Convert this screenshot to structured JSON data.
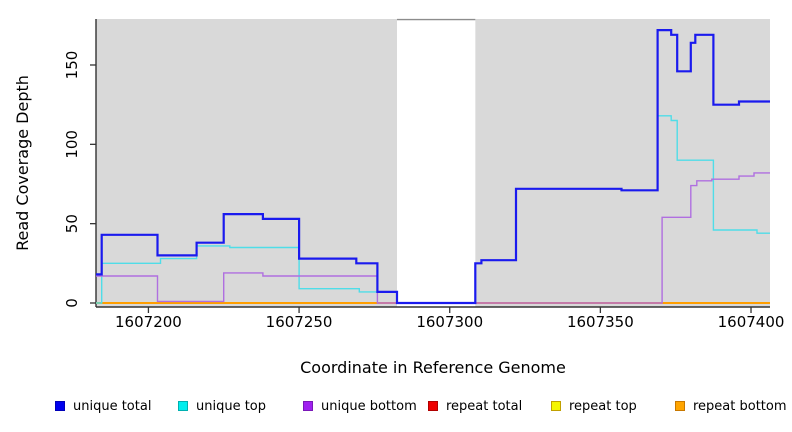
{
  "figure": {
    "background": "#ffffff",
    "panel_background": "#d9d9d9",
    "axis_color": "#333333",
    "gap_top_line_color": "#8c8c8c"
  },
  "chart_data": {
    "type": "line",
    "subtype": "step-coverage",
    "title": "",
    "xlabel": "Coordinate in Reference Genome",
    "ylabel": "Read Coverage Depth",
    "grid": false,
    "legend_position": "bottom",
    "xlim": [
      1607182.6,
      1607406.3
    ],
    "ylim": [
      -3,
      178
    ],
    "x_ticks": [
      1607200,
      1607250,
      1607300,
      1607350,
      1607400
    ],
    "x_tick_labels": [
      "1607200",
      "1607250",
      "1607300",
      "1607350",
      "1607400"
    ],
    "y_ticks": [
      0,
      50,
      100,
      150
    ],
    "y_tick_labels": [
      "0",
      "50",
      "100",
      "150"
    ],
    "gap_region": {
      "start": 1607282.5,
      "end": 1607308.5,
      "fill": "#ffffff",
      "note": "white vertical band where gray panel is masked"
    },
    "series": [
      {
        "name": "repeat total",
        "color": "#e00000",
        "width": 1.6,
        "segments": [
          [
            1607182.6,
            1607406.3,
            0
          ]
        ]
      },
      {
        "name": "repeat top",
        "color": "#f5f500",
        "width": 1.6,
        "segments": [
          [
            1607182.6,
            1607406.3,
            0
          ]
        ]
      },
      {
        "name": "repeat bottom",
        "color": "#ff9e00",
        "width": 2,
        "segments": [
          [
            1607182.6,
            1607406.3,
            0
          ]
        ]
      },
      {
        "name": "unique top",
        "color": "#4fdde8",
        "width": 1.4,
        "segments": [
          [
            1607182.6,
            1607184.5,
            0
          ],
          [
            1607184.5,
            1607204,
            25
          ],
          [
            1607204,
            1607216,
            28
          ],
          [
            1607216,
            1607227,
            36
          ],
          [
            1607227,
            1607250,
            35
          ],
          [
            1607250,
            1607270,
            9
          ],
          [
            1607270,
            1607282.5,
            7
          ],
          [
            1607282.5,
            1607308.5,
            0
          ],
          [
            1607308.5,
            1607310.5,
            25
          ],
          [
            1607310.5,
            1607322,
            27
          ],
          [
            1607322,
            1607357,
            72
          ],
          [
            1607357,
            1607369,
            71
          ],
          [
            1607369,
            1607373.5,
            118
          ],
          [
            1607373.5,
            1607375.5,
            115
          ],
          [
            1607375.5,
            1607387.5,
            90
          ],
          [
            1607387.5,
            1607402,
            46
          ],
          [
            1607402,
            1607406.3,
            44
          ]
        ]
      },
      {
        "name": "unique bottom",
        "color": "#b06fe0",
        "width": 1.4,
        "segments": [
          [
            1607182.6,
            1607203,
            17
          ],
          [
            1607203,
            1607225,
            1
          ],
          [
            1607225,
            1607238,
            19
          ],
          [
            1607238,
            1607276,
            17
          ],
          [
            1607276,
            1607370.5,
            0
          ],
          [
            1607370.5,
            1607380,
            54
          ],
          [
            1607380,
            1607382,
            74
          ],
          [
            1607382,
            1607387,
            77
          ],
          [
            1607387,
            1607396,
            78
          ],
          [
            1607396,
            1607401,
            80
          ],
          [
            1607401,
            1607406.3,
            82
          ]
        ]
      },
      {
        "name": "unique total",
        "color": "#1a1aee",
        "width": 2.2,
        "segments": [
          [
            1607182.6,
            1607184.5,
            18
          ],
          [
            1607184.5,
            1607203,
            43
          ],
          [
            1607203,
            1607216,
            30
          ],
          [
            1607216,
            1607225,
            38
          ],
          [
            1607225,
            1607238,
            56
          ],
          [
            1607238,
            1607250,
            53
          ],
          [
            1607250,
            1607269,
            28
          ],
          [
            1607269,
            1607276,
            25
          ],
          [
            1607276,
            1607282.5,
            7
          ],
          [
            1607282.5,
            1607308.5,
            0
          ],
          [
            1607308.5,
            1607310.5,
            25
          ],
          [
            1607310.5,
            1607322,
            27
          ],
          [
            1607322,
            1607357,
            72
          ],
          [
            1607357,
            1607369,
            71
          ],
          [
            1607369,
            1607373.5,
            172
          ],
          [
            1607373.5,
            1607375.5,
            169
          ],
          [
            1607375.5,
            1607380,
            146
          ],
          [
            1607380,
            1607381.5,
            164
          ],
          [
            1607381.5,
            1607387.5,
            169
          ],
          [
            1607387.5,
            1607396,
            125
          ],
          [
            1607396,
            1607406.3,
            127
          ]
        ]
      }
    ]
  },
  "legend": {
    "items": [
      {
        "label": "unique total",
        "color": "#0000ee",
        "border": "#0000b8"
      },
      {
        "label": "unique top",
        "color": "#00eeee",
        "border": "#00b0b0"
      },
      {
        "label": "unique bottom",
        "color": "#a020f0",
        "border": "#7a18b8"
      },
      {
        "label": "repeat total",
        "color": "#ee0000",
        "border": "#b00000"
      },
      {
        "label": "repeat top",
        "color": "#f5f500",
        "border": "#c0a000"
      },
      {
        "label": "repeat bottom",
        "color": "#ffa500",
        "border": "#c87800"
      }
    ]
  }
}
